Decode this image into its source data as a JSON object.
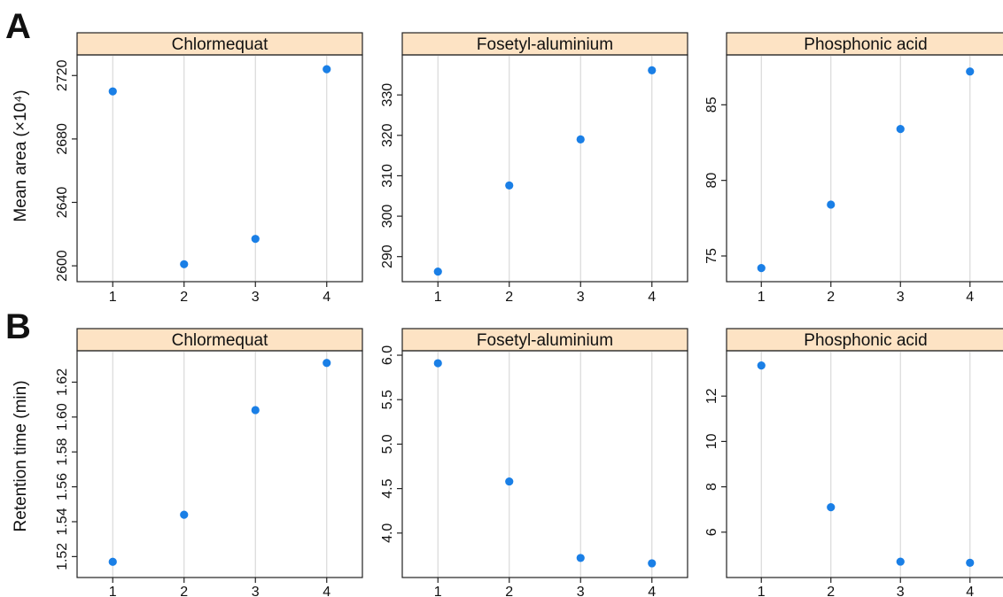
{
  "figure": {
    "row_labels": [
      "A",
      "B"
    ],
    "row_ylabels": [
      "Mean area (×10⁴)",
      "Retention time (min)"
    ],
    "strip_fill": "#fde3c4",
    "point_color": "#1a7fe6",
    "grid_color": "#d9d9d9"
  },
  "chart_data": [
    {
      "type": "scatter",
      "row": 0,
      "col": 0,
      "title": "Chlormequat",
      "ylabel": "Mean area (×10⁴)",
      "x": [
        1,
        2,
        3,
        4
      ],
      "y": [
        2710,
        2601,
        2617,
        2724
      ],
      "xlim": [
        0.5,
        4.5
      ],
      "ylim": [
        2590,
        2733
      ],
      "xticks": [
        1,
        2,
        3,
        4
      ],
      "yticks": [
        2600,
        2640,
        2680,
        2720
      ],
      "ytick_labels": [
        "2600",
        "2640",
        "2680",
        "2720"
      ],
      "grid": "vertical"
    },
    {
      "type": "scatter",
      "row": 0,
      "col": 1,
      "title": "Fosetyl-aluminium",
      "ylabel": "",
      "x": [
        1,
        2,
        3,
        4
      ],
      "y": [
        286.3,
        307.6,
        319.0,
        336.1
      ],
      "xlim": [
        0.5,
        4.5
      ],
      "ylim": [
        283.8,
        339.9
      ],
      "xticks": [
        1,
        2,
        3,
        4
      ],
      "yticks": [
        290,
        300,
        310,
        320,
        330
      ],
      "ytick_labels": [
        "290",
        "300",
        "310",
        "320",
        "330"
      ],
      "grid": "vertical"
    },
    {
      "type": "scatter",
      "row": 0,
      "col": 2,
      "title": "Phosphonic acid",
      "ylabel": "",
      "x": [
        1,
        2,
        3,
        4
      ],
      "y": [
        74.2,
        78.4,
        83.4,
        87.2
      ],
      "xlim": [
        0.5,
        4.5
      ],
      "ylim": [
        73.3,
        88.3
      ],
      "xticks": [
        1,
        2,
        3,
        4
      ],
      "yticks": [
        75,
        80,
        85
      ],
      "ytick_labels": [
        "75",
        "80",
        "85"
      ],
      "grid": "vertical"
    },
    {
      "type": "scatter",
      "row": 1,
      "col": 0,
      "title": "Chlormequat",
      "ylabel": "Retention time (min)",
      "x": [
        1,
        2,
        3,
        4
      ],
      "y": [
        1.517,
        1.544,
        1.604,
        1.631
      ],
      "xlim": [
        0.5,
        4.5
      ],
      "ylim": [
        1.508,
        1.638
      ],
      "xticks": [
        1,
        2,
        3,
        4
      ],
      "yticks": [
        1.52,
        1.54,
        1.56,
        1.58,
        1.6,
        1.62
      ],
      "ytick_labels": [
        "1.52",
        "1.54",
        "1.56",
        "1.58",
        "1.60",
        "1.62"
      ],
      "grid": "vertical"
    },
    {
      "type": "scatter",
      "row": 1,
      "col": 1,
      "title": "Fosetyl-aluminium",
      "ylabel": "",
      "x": [
        1,
        2,
        3,
        4
      ],
      "y": [
        5.91,
        4.58,
        3.72,
        3.66
      ],
      "xlim": [
        0.5,
        4.5
      ],
      "ylim": [
        3.5,
        6.05
      ],
      "xticks": [
        1,
        2,
        3,
        4
      ],
      "yticks": [
        4.0,
        4.5,
        5.0,
        5.5,
        6.0
      ],
      "ytick_labels": [
        "4.0",
        "4.5",
        "5.0",
        "5.5",
        "6.0"
      ],
      "grid": "vertical"
    },
    {
      "type": "scatter",
      "row": 1,
      "col": 2,
      "title": "Phosphonic acid",
      "ylabel": "",
      "x": [
        1,
        2,
        3,
        4
      ],
      "y": [
        13.35,
        7.1,
        4.7,
        4.65
      ],
      "xlim": [
        0.5,
        4.5
      ],
      "ylim": [
        4.0,
        14.0
      ],
      "xticks": [
        1,
        2,
        3,
        4
      ],
      "yticks": [
        6,
        8,
        10,
        12
      ],
      "ytick_labels": [
        "6",
        "8",
        "10",
        "12"
      ],
      "grid": "vertical"
    }
  ]
}
